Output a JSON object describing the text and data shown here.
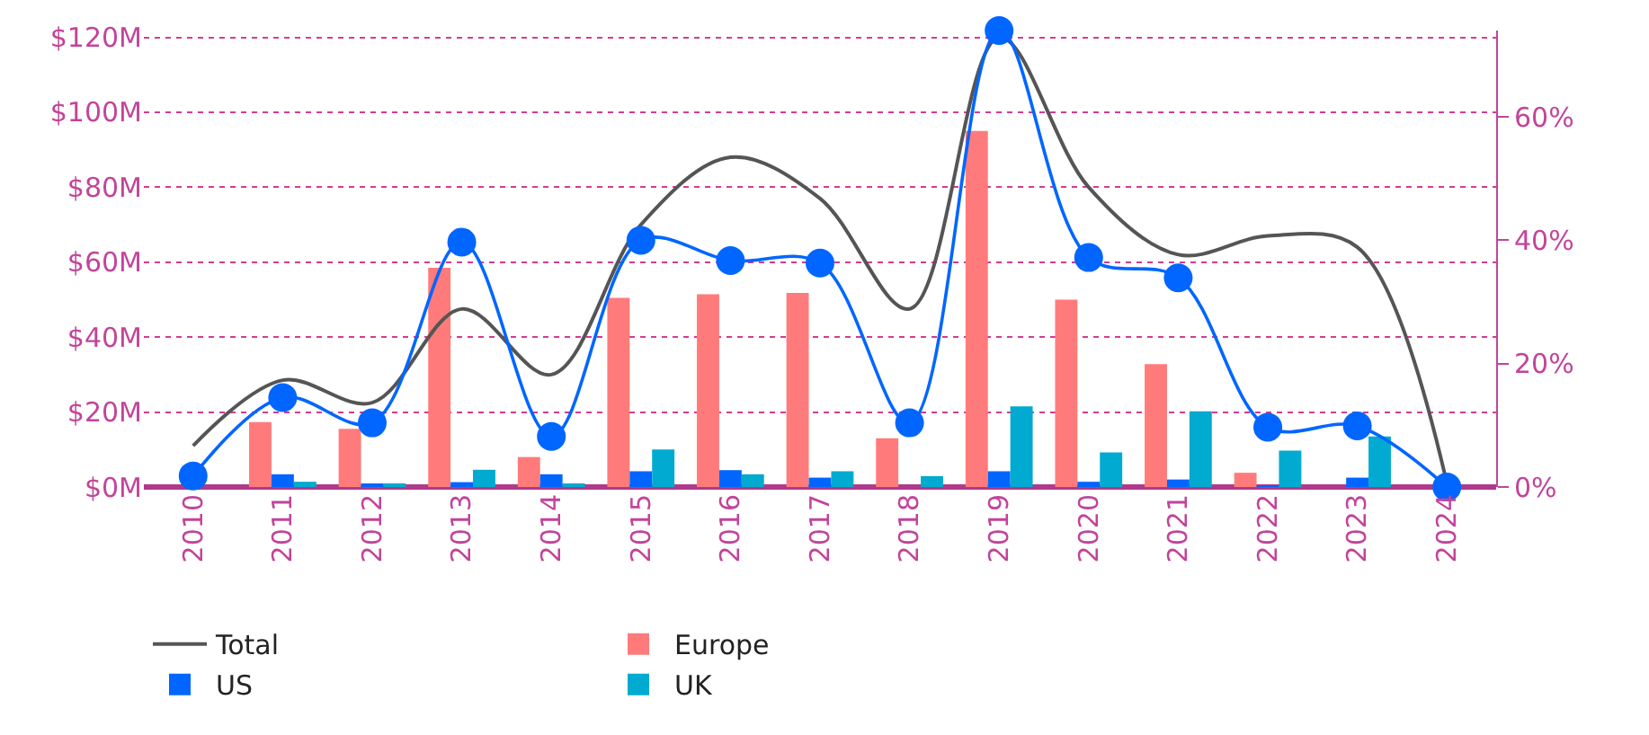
{
  "chart_data": {
    "type": "bar",
    "categories": [
      "2010",
      "2011",
      "2012",
      "2013",
      "2014",
      "2015",
      "2016",
      "2017",
      "2018",
      "2019",
      "2020",
      "2021",
      "2022",
      "2023",
      "2024"
    ],
    "series": [
      {
        "name": "Total",
        "type": "line",
        "color": "#555555",
        "values": [
          11,
          28.5,
          22.5,
          47.5,
          30,
          70,
          88,
          77,
          47.5,
          120,
          80,
          62,
          67,
          64,
          1
        ]
      },
      {
        "name": "Europe",
        "color": "#ff7b7b",
        "values": [
          0,
          17.3,
          15.5,
          58.5,
          8,
          50.5,
          51.4,
          51.8,
          13,
          95,
          50,
          32.8,
          3.8,
          0,
          0
        ]
      },
      {
        "name": "US",
        "color": "#0066ff",
        "values": [
          0,
          3.4,
          0.5,
          1.3,
          3.4,
          4.2,
          4.5,
          2.5,
          0,
          4.2,
          1.4,
          2,
          0.3,
          2.5,
          0
        ]
      },
      {
        "name": "UK",
        "color": "#00aad0",
        "values": [
          0,
          1.4,
          0.5,
          4.6,
          0.5,
          10,
          3.4,
          4.2,
          2.9,
          21.5,
          9.2,
          20.2,
          9.7,
          13.5,
          0
        ]
      },
      {
        "type": "line",
        "axis": "y2",
        "marker": "circle",
        "color": "#0066ff",
        "values": [
          1.8,
          14.5,
          10.4,
          39.7,
          8.2,
          40,
          36.7,
          36.3,
          10.4,
          74,
          37.2,
          33.9,
          9.7,
          9.9,
          0
        ]
      }
    ],
    "ylim": [
      0,
      121.8
    ],
    "yticks": [
      {
        "value": 0,
        "label": "$0M"
      },
      {
        "value": 20,
        "label": "$20M"
      },
      {
        "value": 40,
        "label": "$40M"
      },
      {
        "value": 60,
        "label": "$60M"
      },
      {
        "value": 80,
        "label": "$80M"
      },
      {
        "value": 100,
        "label": "$100M"
      },
      {
        "value": 120,
        "label": "$120M"
      }
    ],
    "y2lim": [
      0,
      74
    ],
    "y2ticks": [
      {
        "value": 0,
        "label": "0%"
      },
      {
        "value": 20,
        "label": "20%"
      },
      {
        "value": 40,
        "label": "40%"
      },
      {
        "value": 60,
        "label": "60%"
      }
    ],
    "grid": "y",
    "legend": "bottom"
  }
}
